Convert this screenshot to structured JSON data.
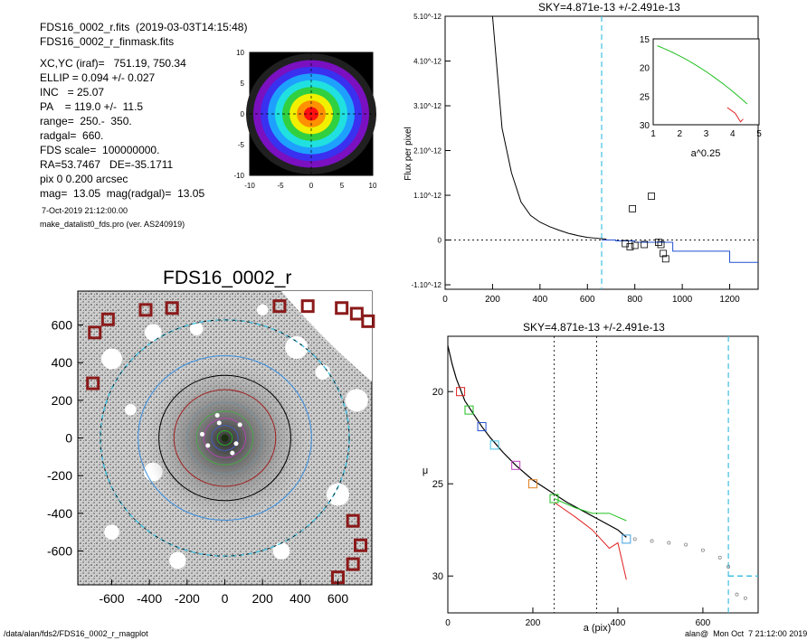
{
  "header": {
    "lines": [
      "FDS16_0002_r.fits  (2019-03-03T14:15:48)",
      "FDS16_0002_r_finmask.fits"
    ],
    "params": [
      "XC,YC (iraf)=   751.19, 750.34",
      "ELLIP = 0.094 +/- 0.027",
      "INC   = 25.07",
      "PA    = 119.0 +/-  11.5",
      "range=  250.-  350.",
      "radgal=  660.",
      "FDS scale=  100000000.",
      "RA=53.7467   DE=-35.1711",
      "pix 0 0.200 arcsec",
      "mag=  13.05  mag(radgal)=  13.05"
    ],
    "date": "7-Oct-2019 21:12:00.00",
    "program": "make_datalist0_fds.pro (ver. AS240919)"
  },
  "footer": {
    "path": "/data/alan/fds2/FDS16_0002_r_magplot",
    "user": "alan@  Mon Oct  7 21:12:00 2019"
  },
  "colors": {
    "dark_red": "#8b1a1a",
    "cyan": "#40c0e0",
    "green": "#20c020",
    "red": "#e02020",
    "blue": "#2050d0"
  },
  "chart_data": [
    {
      "id": "thumb",
      "type": "heatmap",
      "xlim": [
        -10,
        10
      ],
      "ylim": [
        -10,
        10
      ],
      "xticks": [
        "-10",
        "-5",
        "0",
        "5",
        "10"
      ],
      "yticks": [
        "10",
        "5",
        "0",
        "-5",
        "-10"
      ],
      "rings": [
        "#202020",
        "#7a10c0",
        "#3a30f0",
        "#1ea0ff",
        "#20e0e0",
        "#30d040",
        "#f0f000",
        "#ff9000",
        "#ff1010"
      ]
    },
    {
      "id": "image",
      "type": "scatter",
      "title": "FDS16_0002_r",
      "xlim": [
        -780,
        780
      ],
      "ylim": [
        -780,
        780
      ],
      "xticks": [
        "-600",
        "-400",
        "-200",
        "0",
        "200",
        "400",
        "600"
      ],
      "yticks": [
        "600",
        "400",
        "200",
        "0",
        "-200",
        "-400",
        "-600"
      ],
      "markers": [
        [
          -700,
          290
        ],
        [
          -690,
          560
        ],
        [
          -620,
          630
        ],
        [
          -420,
          680
        ],
        [
          -280,
          690
        ],
        [
          290,
          700
        ],
        [
          440,
          700
        ],
        [
          620,
          690
        ],
        [
          700,
          660
        ],
        [
          760,
          620
        ],
        [
          680,
          -440
        ],
        [
          720,
          -570
        ],
        [
          680,
          -670
        ],
        [
          600,
          -740
        ]
      ]
    },
    {
      "id": "flux",
      "type": "line",
      "title": "SKY=4.871e-13 +/-2.491e-13",
      "xlabel": "",
      "ylabel": "Flux per pixel",
      "xlim": [
        0,
        1320
      ],
      "ylim": [
        -1.1e-12,
        5e-12
      ],
      "xticks": [
        "0",
        "200",
        "400",
        "600",
        "800",
        "1000",
        "1200"
      ],
      "yticks": [
        "5.10^-12",
        "4.10^-12",
        "3.10^-12",
        "2.10^-12",
        "1.10^-12",
        "0",
        "-1.10^-12"
      ],
      "vline": 660,
      "series": [
        {
          "x": [
            200,
            240,
            280,
            320,
            360,
            400,
            440,
            480,
            520,
            560,
            600,
            640,
            680
          ],
          "y": [
            5e-12,
            2.5e-12,
            1.5e-12,
            8.5e-13,
            5.5e-13,
            4e-13,
            3e-13,
            2.2e-13,
            1.5e-13,
            1e-13,
            6e-14,
            4e-14,
            2e-14
          ]
        }
      ],
      "squares": [
        [
          790,
          7e-13
        ],
        [
          870,
          9.8e-13
        ],
        [
          800,
          -1.2e-13
        ],
        [
          840,
          -1e-13
        ],
        [
          900,
          -5e-14
        ],
        [
          910,
          -1e-13
        ],
        [
          920,
          -3e-13
        ],
        [
          930,
          -4.2e-13
        ],
        [
          780,
          -1.5e-13
        ],
        [
          760,
          -8e-14
        ]
      ],
      "inset": {
        "xlabel": "a^0.25",
        "xlim": [
          1,
          5
        ],
        "ylim": [
          30,
          15
        ],
        "xticks": [
          "1",
          "2",
          "3",
          "4",
          "5"
        ],
        "yticks": [
          "15",
          "20",
          "25",
          "30"
        ]
      }
    },
    {
      "id": "profile",
      "type": "line",
      "title": "SKY=4.871e-13 +/-2.491e-13",
      "xlabel": "a (pix)",
      "ylabel": "μ",
      "xlim": [
        0,
        730
      ],
      "ylim": [
        32,
        17
      ],
      "xticks": [
        "0",
        "200",
        "400",
        "600"
      ],
      "yticks": [
        "20",
        "25",
        "30"
      ],
      "vlines": [
        250,
        350
      ],
      "sky_vline": 660,
      "sky_level": 30.0,
      "x": [
        0,
        10,
        20,
        40,
        60,
        80,
        100,
        130,
        160,
        200,
        240,
        280,
        320,
        360,
        400,
        420
      ],
      "y": [
        17.5,
        18.5,
        19.3,
        20.5,
        21.2,
        21.9,
        22.5,
        23.3,
        24.0,
        24.8,
        25.4,
        26.0,
        26.5,
        27.0,
        27.5,
        27.9
      ],
      "boxes": [
        [
          30,
          20.0,
          "#e02020"
        ],
        [
          50,
          21.0,
          "#20c020"
        ],
        [
          80,
          21.9,
          "#2050d0"
        ],
        [
          110,
          22.9,
          "#40c0e0"
        ],
        [
          160,
          24.0,
          "#c040c0"
        ],
        [
          200,
          25.0,
          "#e08020"
        ],
        [
          250,
          25.8,
          "#20c020"
        ],
        [
          420,
          28.0,
          "#40a0e0"
        ]
      ]
    }
  ]
}
